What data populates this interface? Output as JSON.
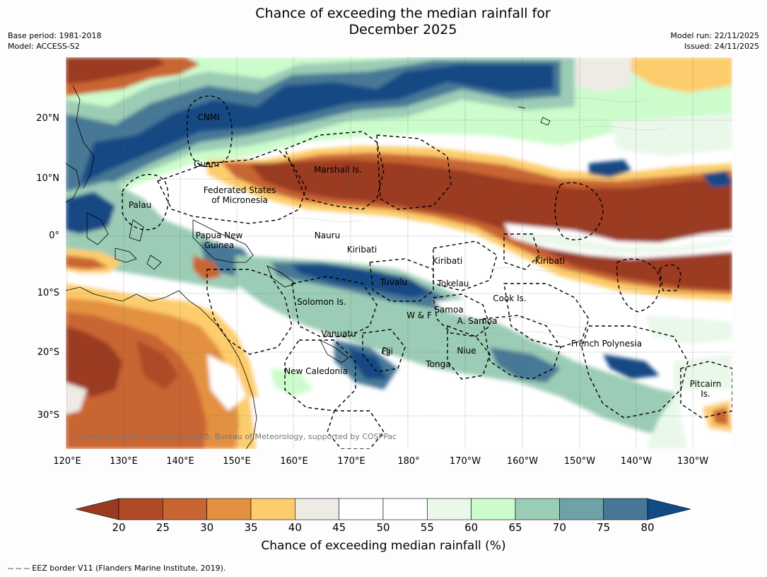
{
  "title_line1": "Chance of exceeding the median rainfall for",
  "title_line2": "December 2025",
  "meta": {
    "base_period": "Base period: 1981-2018",
    "model": "Model: ACCESS-S2",
    "model_run": "Model run: 22/11/2025",
    "issued": "Issued: 24/11/2025"
  },
  "lat_labels": [
    "20°N",
    "10°N",
    "0°",
    "10°S",
    "20°S",
    "30°S"
  ],
  "lon_labels": [
    "120°E",
    "130°E",
    "140°E",
    "150°E",
    "160°E",
    "170°E",
    "180°",
    "170°W",
    "160°W",
    "150°W",
    "140°W",
    "130°W"
  ],
  "regions": {
    "cnmi": "CNMI",
    "guam": "Guam",
    "marshall": "Marshall Is.",
    "fsm_line1": "Federated States",
    "fsm_line2": "of Micronesia",
    "palau": "Palau",
    "png_line1": "Papua New",
    "png_line2": "Guinea",
    "nauru": "Nauru",
    "kiribati_w": "Kiribati",
    "kiribati_c": "Kiribati",
    "kiribati_e": "Kiribati",
    "tuvalu": "Tuvalu",
    "tokelau": "Tokelau",
    "solomon": "Solomon Is.",
    "wf": "W & F",
    "samoa": "Samoa",
    "asamoa": "A. Samoa",
    "cook": "Cook Is.",
    "vanuatu": "Vanuatu",
    "fiji": "Fiji",
    "niue": "Niue",
    "tonga": "Tonga",
    "french_polynesia": "French Polynesia",
    "new_caledonia": "New Caledonia",
    "pitcairn_line1": "Pitcairn",
    "pitcairn_line2": "Is."
  },
  "copyright": "© Commonwealth of Australia 2025, Bureau of Meteorology, supported by COSPPac",
  "colorbar": {
    "ticks": [
      "20",
      "25",
      "30",
      "35",
      "40",
      "45",
      "50",
      "55",
      "60",
      "65",
      "70",
      "75",
      "80"
    ],
    "colors": {
      "below_20": "#9a3a20",
      "20_25": "#b04a25",
      "25_30": "#c96532",
      "30_35": "#e39040",
      "35_40": "#fdcc6c",
      "40_45": "#eeebe5",
      "45_50": "#ffffff",
      "50_55": "#ffffff",
      "55_60": "#eaf8ea",
      "60_65": "#ccfccc",
      "65_70": "#9bccb6",
      "70_75": "#6ca2a8",
      "75_80": "#467896",
      "above_80": "#124a84"
    },
    "label": "Chance of exceeding median rainfall (%)"
  },
  "footnote": "--  --  -- EEZ border V11 (Flanders Marine Institute, 2019)."
}
